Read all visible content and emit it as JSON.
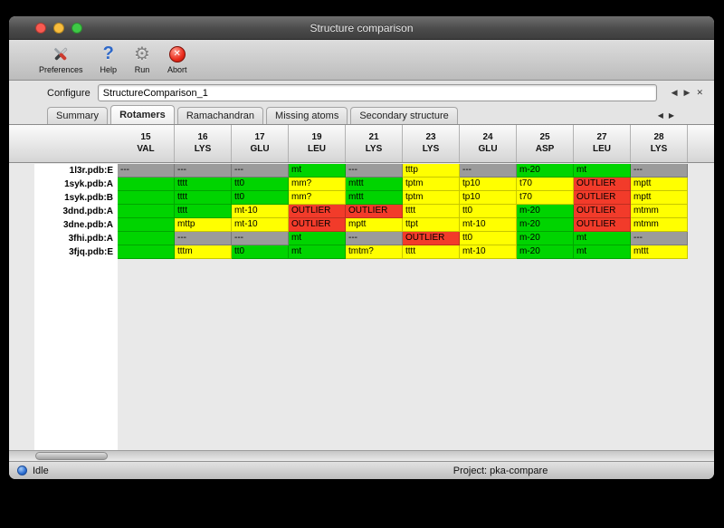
{
  "window": {
    "title": "Structure comparison",
    "toolbar": [
      {
        "label": "Preferences",
        "icon": "tools-icon"
      },
      {
        "label": "Help",
        "icon": "question-icon",
        "glyph": "?"
      },
      {
        "label": "Run",
        "icon": "gear-icon",
        "glyph": "⚙"
      },
      {
        "label": "Abort",
        "icon": "abort-icon",
        "glyph": "✕"
      }
    ],
    "configure": {
      "label": "Configure",
      "value": "StructureComparison_1"
    },
    "config_nav": {
      "prev": "◀",
      "next": "▶",
      "close": "✕"
    },
    "tabs": [
      {
        "label": "Summary",
        "selected": false
      },
      {
        "label": "Rotamers",
        "selected": true
      },
      {
        "label": "Ramachandran",
        "selected": false
      },
      {
        "label": "Missing atoms",
        "selected": false
      },
      {
        "label": "Secondary structure",
        "selected": false
      }
    ],
    "tab_nav": {
      "prev": "◀",
      "next": "▶"
    },
    "status": {
      "state": "Idle",
      "project": "Project: pka-compare"
    }
  },
  "table": {
    "colors": {
      "green": "#00d400",
      "yellow": "#ffff00",
      "red": "#f23b2a",
      "gray": "#9b9b9b"
    },
    "columns": [
      {
        "num": "15",
        "res": "VAL"
      },
      {
        "num": "16",
        "res": "LYS"
      },
      {
        "num": "17",
        "res": "GLU"
      },
      {
        "num": "19",
        "res": "LEU"
      },
      {
        "num": "21",
        "res": "LYS"
      },
      {
        "num": "23",
        "res": "LYS"
      },
      {
        "num": "24",
        "res": "GLU"
      },
      {
        "num": "25",
        "res": "ASP"
      },
      {
        "num": "27",
        "res": "LEU"
      },
      {
        "num": "28",
        "res": "LYS"
      }
    ],
    "rows": [
      {
        "label": "1l3r.pdb:E",
        "cells": [
          {
            "text": "---",
            "color": "gray"
          },
          {
            "text": "---",
            "color": "gray"
          },
          {
            "text": "---",
            "color": "gray"
          },
          {
            "text": "mt",
            "color": "green"
          },
          {
            "text": "---",
            "color": "gray"
          },
          {
            "text": "tttp",
            "color": "yellow"
          },
          {
            "text": "---",
            "color": "gray"
          },
          {
            "text": "m-20",
            "color": "green"
          },
          {
            "text": "mt",
            "color": "green"
          },
          {
            "text": "---",
            "color": "gray"
          }
        ]
      },
      {
        "label": "1syk.pdb:A",
        "cells": [
          {
            "text": "",
            "color": "green"
          },
          {
            "text": "tttt",
            "color": "green"
          },
          {
            "text": "tt0",
            "color": "green"
          },
          {
            "text": "mm?",
            "color": "yellow"
          },
          {
            "text": "mttt",
            "color": "green"
          },
          {
            "text": "tptm",
            "color": "yellow"
          },
          {
            "text": "tp10",
            "color": "yellow"
          },
          {
            "text": "t70",
            "color": "yellow"
          },
          {
            "text": "OUTLIER",
            "color": "red"
          },
          {
            "text": "mptt",
            "color": "yellow"
          }
        ]
      },
      {
        "label": "1syk.pdb:B",
        "cells": [
          {
            "text": "",
            "color": "green"
          },
          {
            "text": "tttt",
            "color": "green"
          },
          {
            "text": "tt0",
            "color": "green"
          },
          {
            "text": "mm?",
            "color": "yellow"
          },
          {
            "text": "mttt",
            "color": "green"
          },
          {
            "text": "tptm",
            "color": "yellow"
          },
          {
            "text": "tp10",
            "color": "yellow"
          },
          {
            "text": "t70",
            "color": "yellow"
          },
          {
            "text": "OUTLIER",
            "color": "red"
          },
          {
            "text": "mptt",
            "color": "yellow"
          }
        ]
      },
      {
        "label": "3dnd.pdb:A",
        "cells": [
          {
            "text": "",
            "color": "green"
          },
          {
            "text": "tttt",
            "color": "green"
          },
          {
            "text": "mt-10",
            "color": "yellow"
          },
          {
            "text": "OUTLIER",
            "color": "red"
          },
          {
            "text": "OUTLIER",
            "color": "red"
          },
          {
            "text": "tttt",
            "color": "yellow"
          },
          {
            "text": "tt0",
            "color": "yellow"
          },
          {
            "text": "m-20",
            "color": "green"
          },
          {
            "text": "OUTLIER",
            "color": "red"
          },
          {
            "text": "mtmm",
            "color": "yellow"
          }
        ]
      },
      {
        "label": "3dne.pdb:A",
        "cells": [
          {
            "text": "",
            "color": "green"
          },
          {
            "text": "mttp",
            "color": "yellow"
          },
          {
            "text": "mt-10",
            "color": "yellow"
          },
          {
            "text": "OUTLIER",
            "color": "red"
          },
          {
            "text": "mptt",
            "color": "yellow"
          },
          {
            "text": "ttpt",
            "color": "yellow"
          },
          {
            "text": "mt-10",
            "color": "yellow"
          },
          {
            "text": "m-20",
            "color": "green"
          },
          {
            "text": "OUTLIER",
            "color": "red"
          },
          {
            "text": "mtmm",
            "color": "yellow"
          }
        ]
      },
      {
        "label": "3fhi.pdb:A",
        "cells": [
          {
            "text": "",
            "color": "green"
          },
          {
            "text": "---",
            "color": "gray"
          },
          {
            "text": "---",
            "color": "gray"
          },
          {
            "text": "mt",
            "color": "green"
          },
          {
            "text": "---",
            "color": "gray"
          },
          {
            "text": "OUTLIER",
            "color": "red"
          },
          {
            "text": "tt0",
            "color": "yellow"
          },
          {
            "text": "m-20",
            "color": "green"
          },
          {
            "text": "mt",
            "color": "green"
          },
          {
            "text": "---",
            "color": "gray"
          }
        ]
      },
      {
        "label": "3fjq.pdb:E",
        "cells": [
          {
            "text": "",
            "color": "green"
          },
          {
            "text": "tttm",
            "color": "yellow"
          },
          {
            "text": "tt0",
            "color": "green"
          },
          {
            "text": "mt",
            "color": "green"
          },
          {
            "text": "tmtm?",
            "color": "yellow"
          },
          {
            "text": "tttt",
            "color": "yellow"
          },
          {
            "text": "mt-10",
            "color": "yellow"
          },
          {
            "text": "m-20",
            "color": "green"
          },
          {
            "text": "mt",
            "color": "green"
          },
          {
            "text": "mttt",
            "color": "yellow"
          }
        ]
      }
    ]
  }
}
